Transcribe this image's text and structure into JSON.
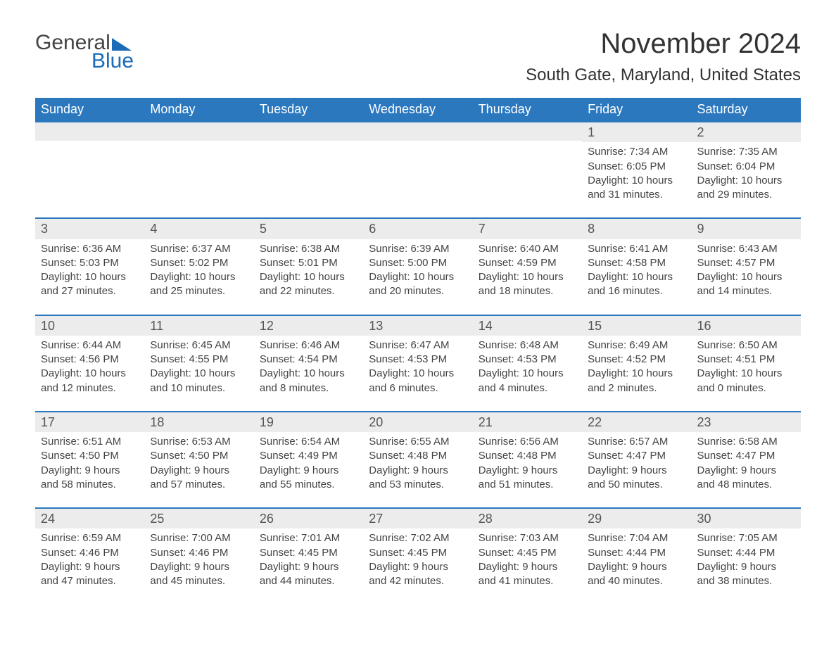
{
  "brand": {
    "word1": "General",
    "word2": "Blue",
    "accent_color": "#1a6bb8"
  },
  "title": "November 2024",
  "location": "South Gate, Maryland, United States",
  "day_headers": [
    "Sunday",
    "Monday",
    "Tuesday",
    "Wednesday",
    "Thursday",
    "Friday",
    "Saturday"
  ],
  "colors": {
    "header_bg": "#2b78bf",
    "header_text": "#ffffff",
    "day_band_bg": "#ececec",
    "row_top_border": "#2b78bf",
    "text": "#444444",
    "page_bg": "#ffffff"
  },
  "typography": {
    "title_fontsize": 40,
    "location_fontsize": 24,
    "header_fontsize": 18,
    "daynum_fontsize": 18,
    "body_fontsize": 15
  },
  "weeks": [
    [
      null,
      null,
      null,
      null,
      null,
      {
        "n": "1",
        "sunrise": "7:34 AM",
        "sunset": "6:05 PM",
        "daylight": "10 hours and 31 minutes."
      },
      {
        "n": "2",
        "sunrise": "7:35 AM",
        "sunset": "6:04 PM",
        "daylight": "10 hours and 29 minutes."
      }
    ],
    [
      {
        "n": "3",
        "sunrise": "6:36 AM",
        "sunset": "5:03 PM",
        "daylight": "10 hours and 27 minutes."
      },
      {
        "n": "4",
        "sunrise": "6:37 AM",
        "sunset": "5:02 PM",
        "daylight": "10 hours and 25 minutes."
      },
      {
        "n": "5",
        "sunrise": "6:38 AM",
        "sunset": "5:01 PM",
        "daylight": "10 hours and 22 minutes."
      },
      {
        "n": "6",
        "sunrise": "6:39 AM",
        "sunset": "5:00 PM",
        "daylight": "10 hours and 20 minutes."
      },
      {
        "n": "7",
        "sunrise": "6:40 AM",
        "sunset": "4:59 PM",
        "daylight": "10 hours and 18 minutes."
      },
      {
        "n": "8",
        "sunrise": "6:41 AM",
        "sunset": "4:58 PM",
        "daylight": "10 hours and 16 minutes."
      },
      {
        "n": "9",
        "sunrise": "6:43 AM",
        "sunset": "4:57 PM",
        "daylight": "10 hours and 14 minutes."
      }
    ],
    [
      {
        "n": "10",
        "sunrise": "6:44 AM",
        "sunset": "4:56 PM",
        "daylight": "10 hours and 12 minutes."
      },
      {
        "n": "11",
        "sunrise": "6:45 AM",
        "sunset": "4:55 PM",
        "daylight": "10 hours and 10 minutes."
      },
      {
        "n": "12",
        "sunrise": "6:46 AM",
        "sunset": "4:54 PM",
        "daylight": "10 hours and 8 minutes."
      },
      {
        "n": "13",
        "sunrise": "6:47 AM",
        "sunset": "4:53 PM",
        "daylight": "10 hours and 6 minutes."
      },
      {
        "n": "14",
        "sunrise": "6:48 AM",
        "sunset": "4:53 PM",
        "daylight": "10 hours and 4 minutes."
      },
      {
        "n": "15",
        "sunrise": "6:49 AM",
        "sunset": "4:52 PM",
        "daylight": "10 hours and 2 minutes."
      },
      {
        "n": "16",
        "sunrise": "6:50 AM",
        "sunset": "4:51 PM",
        "daylight": "10 hours and 0 minutes."
      }
    ],
    [
      {
        "n": "17",
        "sunrise": "6:51 AM",
        "sunset": "4:50 PM",
        "daylight": "9 hours and 58 minutes."
      },
      {
        "n": "18",
        "sunrise": "6:53 AM",
        "sunset": "4:50 PM",
        "daylight": "9 hours and 57 minutes."
      },
      {
        "n": "19",
        "sunrise": "6:54 AM",
        "sunset": "4:49 PM",
        "daylight": "9 hours and 55 minutes."
      },
      {
        "n": "20",
        "sunrise": "6:55 AM",
        "sunset": "4:48 PM",
        "daylight": "9 hours and 53 minutes."
      },
      {
        "n": "21",
        "sunrise": "6:56 AM",
        "sunset": "4:48 PM",
        "daylight": "9 hours and 51 minutes."
      },
      {
        "n": "22",
        "sunrise": "6:57 AM",
        "sunset": "4:47 PM",
        "daylight": "9 hours and 50 minutes."
      },
      {
        "n": "23",
        "sunrise": "6:58 AM",
        "sunset": "4:47 PM",
        "daylight": "9 hours and 48 minutes."
      }
    ],
    [
      {
        "n": "24",
        "sunrise": "6:59 AM",
        "sunset": "4:46 PM",
        "daylight": "9 hours and 47 minutes."
      },
      {
        "n": "25",
        "sunrise": "7:00 AM",
        "sunset": "4:46 PM",
        "daylight": "9 hours and 45 minutes."
      },
      {
        "n": "26",
        "sunrise": "7:01 AM",
        "sunset": "4:45 PM",
        "daylight": "9 hours and 44 minutes."
      },
      {
        "n": "27",
        "sunrise": "7:02 AM",
        "sunset": "4:45 PM",
        "daylight": "9 hours and 42 minutes."
      },
      {
        "n": "28",
        "sunrise": "7:03 AM",
        "sunset": "4:45 PM",
        "daylight": "9 hours and 41 minutes."
      },
      {
        "n": "29",
        "sunrise": "7:04 AM",
        "sunset": "4:44 PM",
        "daylight": "9 hours and 40 minutes."
      },
      {
        "n": "30",
        "sunrise": "7:05 AM",
        "sunset": "4:44 PM",
        "daylight": "9 hours and 38 minutes."
      }
    ]
  ],
  "labels": {
    "sunrise": "Sunrise: ",
    "sunset": "Sunset: ",
    "daylight": "Daylight: "
  }
}
